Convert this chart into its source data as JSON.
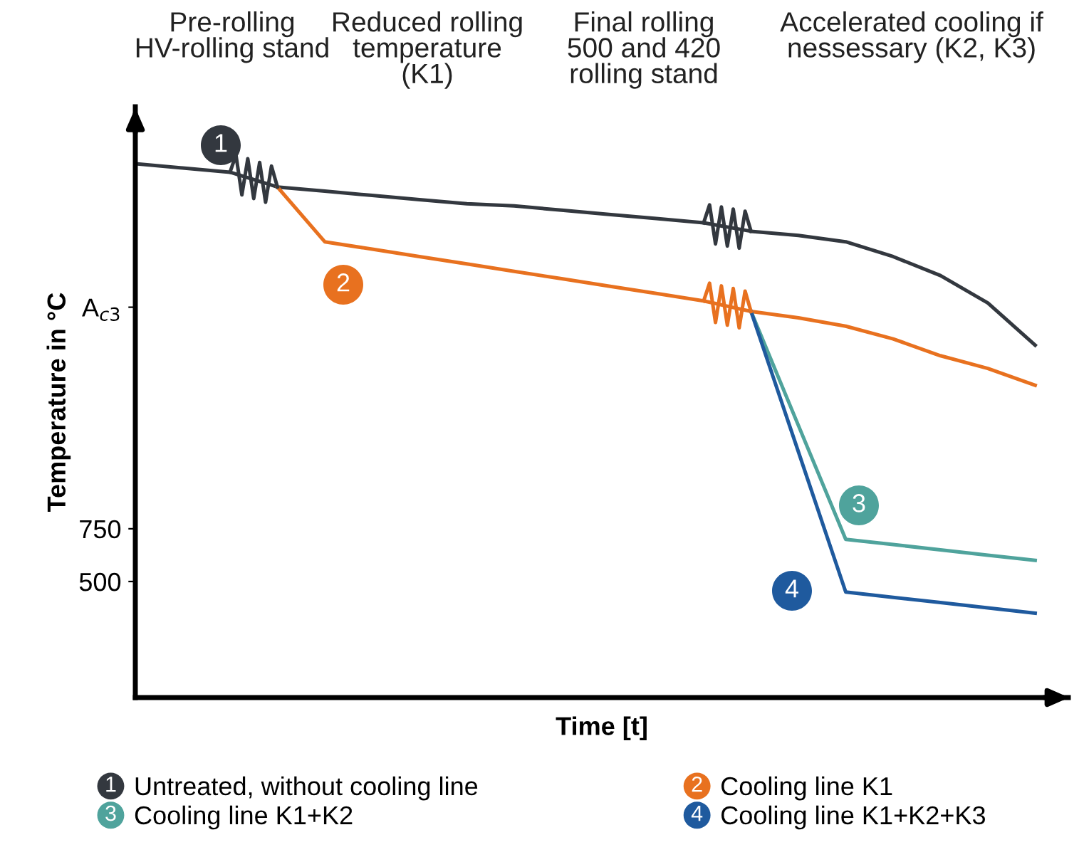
{
  "chart_data": {
    "type": "line",
    "xlabel": "Time [t]",
    "ylabel": "Temperature in °C",
    "categories": [
      null,
      null,
      null,
      null,
      null,
      null,
      null,
      null,
      null,
      null,
      null,
      null,
      null,
      null,
      null,
      null,
      null,
      null,
      null,
      null
    ],
    "series": [
      {
        "name": "Untreated, without cooling line",
        "color": "#33383f",
        "values": [
          2480,
          2460,
          2440,
          2370,
          2350,
          2330,
          2310,
          2290,
          2280,
          2260,
          2240,
          2220,
          2200,
          2160,
          2140,
          2110,
          2040,
          1950,
          1820,
          1620
        ]
      },
      {
        "name": "Cooling line K1",
        "color": "#e8711f",
        "values": [
          null,
          null,
          null,
          2370,
          2110,
          2075,
          2040,
          2005,
          1970,
          1935,
          1900,
          1865,
          1830,
          1780,
          1750,
          1710,
          1650,
          1570,
          1510,
          1430
        ]
      },
      {
        "name": "Cooling line K1+K2",
        "color": "#4fa39c",
        "values": [
          null,
          null,
          null,
          null,
          null,
          null,
          null,
          null,
          null,
          null,
          null,
          null,
          null,
          1780,
          1240,
          700,
          675,
          650,
          625,
          600
        ]
      },
      {
        "name": "Cooling line K1+K2+K3",
        "color": "#1f5a9e",
        "values": [
          null,
          null,
          null,
          null,
          null,
          null,
          null,
          null,
          null,
          null,
          null,
          null,
          null,
          1780,
          1115,
          450,
          425,
          400,
          375,
          350
        ]
      }
    ],
    "ylim": [
      -50,
      2750
    ],
    "yticks": [
      {
        "value": 1800,
        "label": "A$_{c3}$"
      },
      750,
      500
    ],
    "legend": "bottom",
    "marker": "none",
    "line_style": "solid",
    "annotations": [
      "Pre-rolling\nHV-rolling stand",
      "Reduced rolling\ntemperature\n(K1)",
      "Final rolling\n500 and 420\nrolling stand",
      "Accelerated cooling if\nnessessary (K2, K3)",
      "1",
      "2",
      "3",
      "4"
    ]
  }
}
